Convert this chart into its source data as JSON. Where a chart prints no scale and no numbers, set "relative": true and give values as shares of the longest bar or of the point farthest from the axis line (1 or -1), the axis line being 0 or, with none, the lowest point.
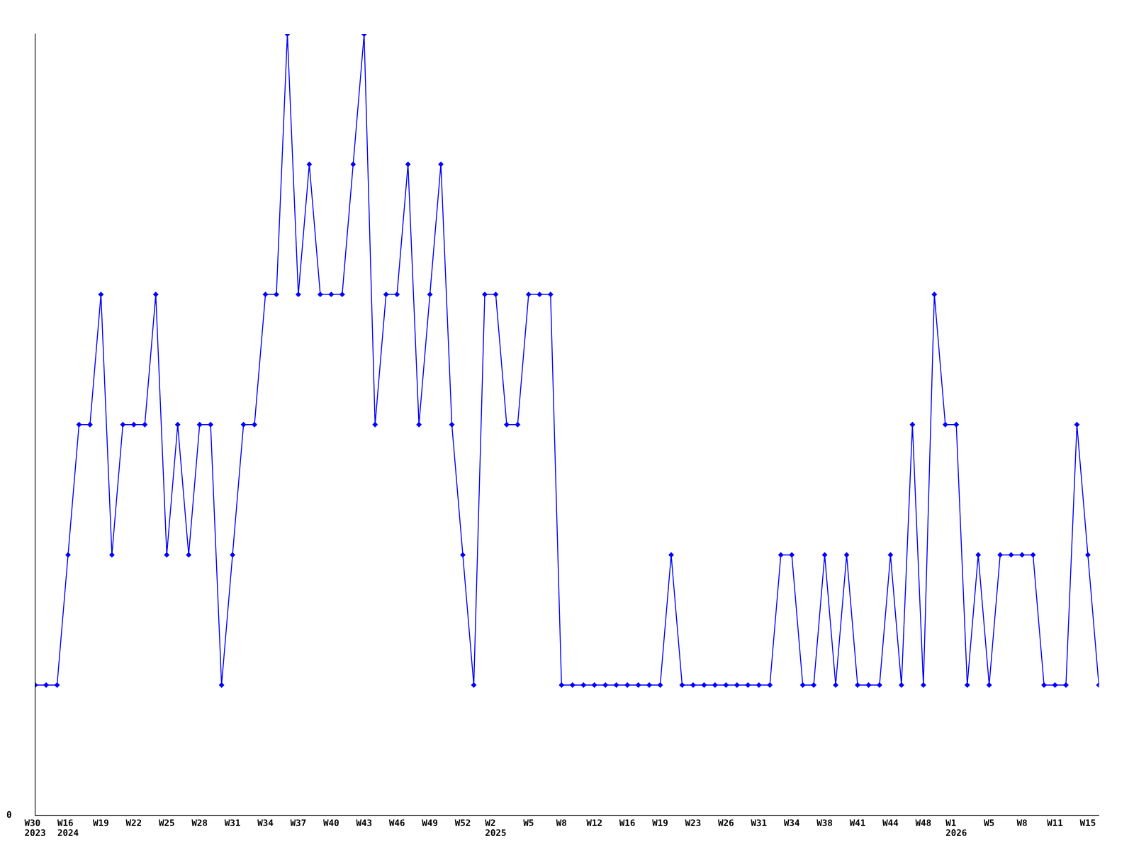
{
  "chart_data": {
    "type": "line",
    "relative": true,
    "color": "#0000ff",
    "marker": "diamond",
    "line_style": "solid",
    "grid": false,
    "annotations": [
      "0"
    ],
    "categories": [
      "W30\n2023",
      null,
      null,
      "W16\n2024",
      null,
      null,
      "W19",
      null,
      null,
      "W22",
      null,
      null,
      "W25",
      null,
      null,
      "W28",
      null,
      null,
      "W31",
      null,
      null,
      "W34",
      null,
      null,
      "W37",
      null,
      null,
      "W40",
      null,
      null,
      "W43",
      null,
      null,
      "W46",
      null,
      null,
      "W49",
      null,
      null,
      "W52",
      null,
      null,
      "W2\n2025",
      null,
      null,
      "W5",
      null,
      null,
      "W8",
      null,
      null,
      "W12",
      null,
      null,
      "W16",
      null,
      null,
      "W19",
      null,
      null,
      "W23",
      null,
      null,
      "W26",
      null,
      null,
      "W31",
      null,
      null,
      "W34",
      null,
      null,
      "W38",
      null,
      null,
      "W41",
      null,
      null,
      "W44",
      null,
      null,
      "W48",
      null,
      null,
      "W1\n2026",
      null,
      null,
      "W5",
      null,
      null,
      "W8",
      null,
      null,
      "W11",
      null,
      null,
      "W15",
      null
    ],
    "values": [
      0.1667,
      0.1667,
      0.1667,
      0.3333,
      0.5,
      0.5,
      0.6667,
      0.3333,
      0.5,
      0.5,
      0.5,
      0.6667,
      0.3333,
      0.5,
      0.3333,
      0.5,
      0.5,
      0.1667,
      0.3333,
      0.5,
      0.5,
      0.6667,
      0.6667,
      1,
      0.6667,
      0.8333,
      0.6667,
      0.6667,
      0.6667,
      0.8333,
      1,
      0.5,
      0.6667,
      0.6667,
      0.8333,
      0.5,
      0.6667,
      0.8333,
      0.5,
      0.3333,
      0.1667,
      0.6667,
      0.6667,
      0.5,
      0.5,
      0.6667,
      0.6667,
      0.6667,
      0.1667,
      0.1667,
      0.1667,
      0.1667,
      0.1667,
      0.1667,
      0.1667,
      0.1667,
      0.1667,
      0.1667,
      0.3333,
      0.1667,
      0.1667,
      0.1667,
      0.1667,
      0.1667,
      0.1667,
      0.1667,
      0.1667,
      0.1667,
      0.3333,
      0.3333,
      0.1667,
      0.1667,
      0.3333,
      0.1667,
      0.3333,
      0.1667,
      0.1667,
      0.1667,
      0.3333,
      0.1667,
      0.5,
      0.1667,
      0.6667,
      0.5,
      0.5,
      0.1667,
      0.3333,
      0.1667,
      0.3333,
      0.3333,
      0.3333,
      0.3333,
      0.1667,
      0.1667,
      0.1667,
      0.5,
      0.3333,
      0.1667
    ]
  }
}
